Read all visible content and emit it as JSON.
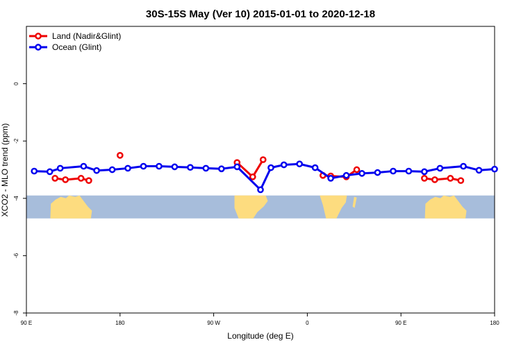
{
  "chart_data": {
    "type": "line",
    "title": "30S-15S May (Ver 10)   2015-01-01 to 2020-12-18",
    "xlabel": "Longitude (deg E)",
    "ylabel": "XCO2 - MLO trend (ppm)",
    "xlim": [
      90,
      540
    ],
    "ylim": [
      -8,
      2
    ],
    "x_ticks": [
      {
        "value": 90,
        "label": "90 E"
      },
      {
        "value": 180,
        "label": "180"
      },
      {
        "value": 270,
        "label": "90 W"
      },
      {
        "value": 360,
        "label": "0"
      },
      {
        "value": 450,
        "label": "90 E"
      },
      {
        "value": 540,
        "label": "180"
      }
    ],
    "y_ticks": [
      {
        "value": 0,
        "label": "0"
      },
      {
        "value": -2,
        "label": "-2"
      },
      {
        "value": -4,
        "label": "-4"
      },
      {
        "value": -6,
        "label": "-6"
      },
      {
        "value": -8,
        "label": "-8"
      }
    ],
    "grid": false,
    "legend_position": "top-left",
    "map_band": {
      "y_top": -3.9,
      "y_bottom": -4.7,
      "ocean_color": "#a7bddb",
      "land_color": "#fddc7f"
    },
    "series": [
      {
        "name": "Land (Nadir&Glint)",
        "color": "#ee0000",
        "segments": [
          [
            [
              117.5,
              -3.3
            ],
            [
              127.5,
              -3.35
            ],
            [
              142.5,
              -3.3
            ],
            [
              150,
              -3.38
            ]
          ],
          [
            [
              180,
              -2.5
            ]
          ],
          [
            [
              292.5,
              -2.75
            ],
            [
              307.5,
              -3.25
            ],
            [
              317.5,
              -2.65
            ]
          ],
          [
            [
              375,
              -3.2
            ],
            [
              382.5,
              -3.22
            ],
            [
              397.5,
              -3.25
            ],
            [
              407.5,
              -3.0
            ]
          ],
          [
            [
              472.5,
              -3.3
            ],
            [
              482.5,
              -3.35
            ],
            [
              497.5,
              -3.3
            ],
            [
              507.5,
              -3.38
            ]
          ]
        ]
      },
      {
        "name": "Ocean (Glint)",
        "color": "#0000ee",
        "segments": [
          [
            [
              97.5,
              -3.05
            ],
            [
              112.5,
              -3.07
            ],
            [
              122.5,
              -2.95
            ],
            [
              145,
              -2.88
            ],
            [
              157.5,
              -3.03
            ],
            [
              172.5,
              -3.0
            ],
            [
              187.5,
              -2.95
            ],
            [
              202.5,
              -2.88
            ],
            [
              217.5,
              -2.88
            ],
            [
              232.5,
              -2.9
            ],
            [
              247.5,
              -2.92
            ],
            [
              262.5,
              -2.95
            ],
            [
              277.5,
              -2.97
            ],
            [
              292.5,
              -2.9
            ],
            [
              315,
              -3.7
            ],
            [
              325,
              -2.93
            ],
            [
              337.5,
              -2.83
            ],
            [
              352.5,
              -2.8
            ],
            [
              367.5,
              -2.93
            ],
            [
              382.5,
              -3.3
            ],
            [
              397.5,
              -3.2
            ],
            [
              412.5,
              -3.13
            ],
            [
              427.5,
              -3.1
            ],
            [
              442.5,
              -3.05
            ],
            [
              457.5,
              -3.05
            ],
            [
              472.5,
              -3.07
            ],
            [
              487.5,
              -2.95
            ],
            [
              510,
              -2.88
            ],
            [
              525,
              -3.02
            ],
            [
              540,
              -2.98
            ]
          ]
        ]
      }
    ]
  }
}
